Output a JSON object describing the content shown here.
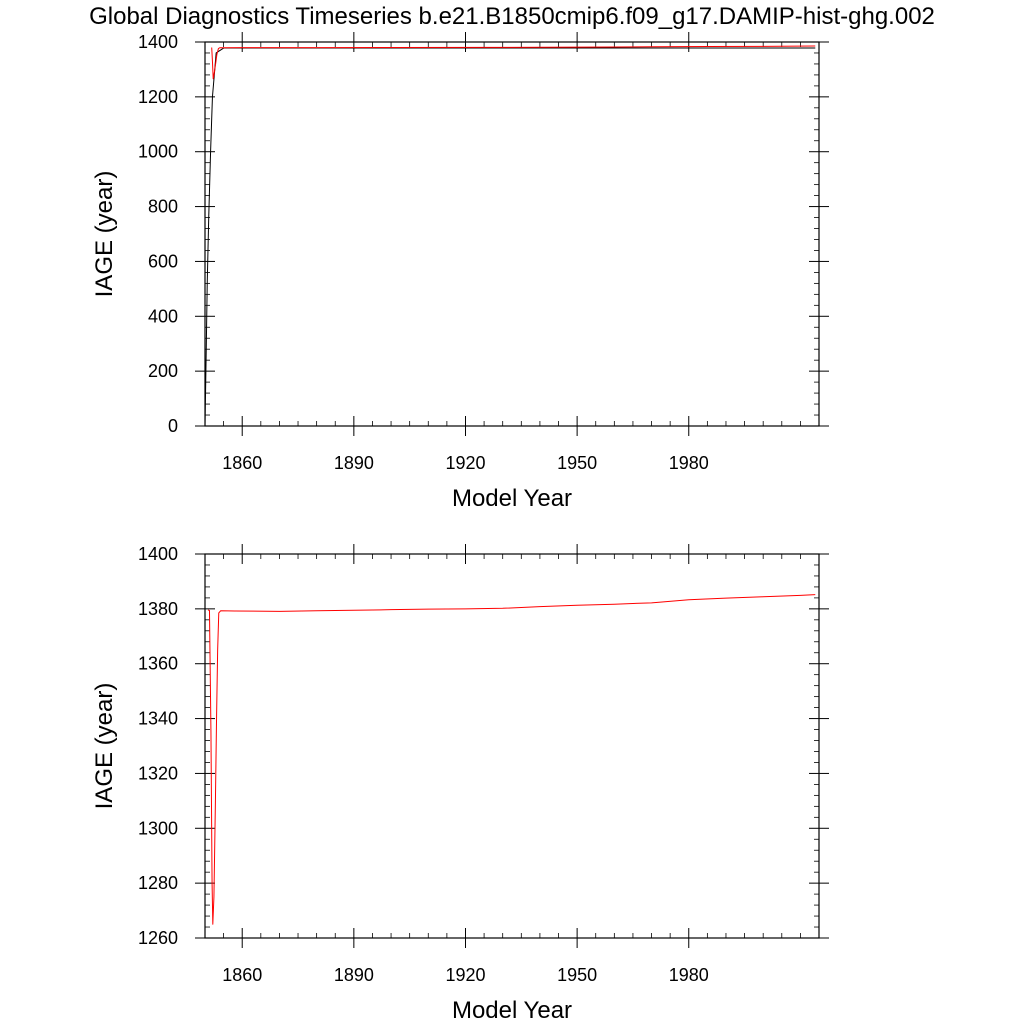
{
  "title": "Global Diagnostics Timeseries b.e21.B1850cmip6.f09_g17.DAMIP-hist-ghg.002",
  "colors": {
    "series_black": "#000000",
    "series_red": "#ff0000",
    "axis": "#000000"
  },
  "chart_data": [
    {
      "type": "line",
      "xlabel": "Model Year",
      "ylabel": "IAGE (year)",
      "xlim": [
        1850,
        2015
      ],
      "ylim": [
        0,
        1400
      ],
      "x_ticks": [
        1860,
        1890,
        1920,
        1950,
        1980
      ],
      "y_ticks": [
        0,
        200,
        400,
        600,
        800,
        1000,
        1200,
        1400
      ],
      "series": [
        {
          "color": "#000000",
          "x": [
            1850,
            1850.3,
            1850.6,
            1851,
            1851.5,
            1852,
            1853,
            1855,
            1870,
            1890,
            1920,
            1950,
            1980,
            2014
          ],
          "y": [
            0,
            250,
            520,
            760,
            1000,
            1200,
            1360,
            1378,
            1378,
            1378,
            1378,
            1378,
            1378,
            1378
          ]
        },
        {
          "color": "#ff0000",
          "x": [
            1851.8,
            1852,
            1852.2,
            1852.4,
            1852.8,
            1853.2,
            1853.6,
            1854,
            1860,
            1880,
            1900,
            1925,
            1960,
            1970,
            1985,
            2000,
            2014
          ],
          "y": [
            1380,
            1330,
            1266,
            1280,
            1315,
            1355,
            1376,
            1379.2,
            1379.3,
            1379.5,
            1379.8,
            1380.2,
            1381.8,
            1382.5,
            1383.5,
            1384.2,
            1385.2
          ]
        }
      ]
    },
    {
      "type": "line",
      "xlabel": "Model Year",
      "ylabel": "IAGE (year)",
      "xlim": [
        1850,
        2015
      ],
      "ylim": [
        1260,
        1400
      ],
      "x_ticks": [
        1860,
        1890,
        1920,
        1950,
        1980
      ],
      "y_ticks": [
        1260,
        1280,
        1300,
        1320,
        1340,
        1360,
        1380,
        1400
      ],
      "series": [
        {
          "color": "#ff0000",
          "x": [
            1850.8,
            1851.2,
            1851.6,
            1851.9,
            1852.1,
            1852.4,
            1852.8,
            1853.1,
            1853.4,
            1853.7,
            1854.2,
            1858,
            1870,
            1880,
            1890,
            1900,
            1910,
            1920,
            1930,
            1940,
            1950,
            1960,
            1970,
            1980,
            1990,
            2000,
            2010,
            2014
          ],
          "y": [
            1379.6,
            1379.4,
            1335,
            1280,
            1265,
            1275,
            1310,
            1340,
            1365,
            1378.5,
            1379.3,
            1379.2,
            1379.1,
            1379.3,
            1379.5,
            1379.7,
            1379.9,
            1380.0,
            1380.2,
            1380.8,
            1381.3,
            1381.7,
            1382.2,
            1383.3,
            1383.9,
            1384.4,
            1384.9,
            1385.2
          ]
        }
      ]
    }
  ]
}
